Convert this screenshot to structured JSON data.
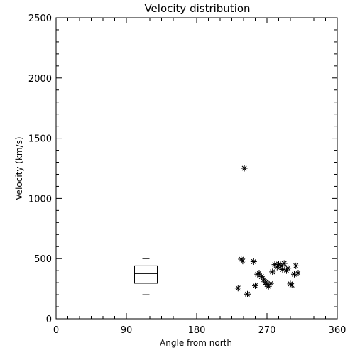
{
  "chart_data": {
    "type": "scatter",
    "title": "Velocity distribution",
    "xlabel": "Angle from north",
    "ylabel": "Velocity (km/s)",
    "xlim": [
      0,
      360
    ],
    "ylim": [
      0,
      2500
    ],
    "xticks": [
      0,
      90,
      180,
      270,
      360
    ],
    "yticks": [
      0,
      500,
      1000,
      1500,
      2000,
      2500
    ],
    "grid": false,
    "marker": "asterisk",
    "points": [
      {
        "x": 241,
        "y": 1250
      },
      {
        "x": 237,
        "y": 495
      },
      {
        "x": 239,
        "y": 480
      },
      {
        "x": 253,
        "y": 475
      },
      {
        "x": 233,
        "y": 255
      },
      {
        "x": 245,
        "y": 205
      },
      {
        "x": 255,
        "y": 275
      },
      {
        "x": 258,
        "y": 370
      },
      {
        "x": 260,
        "y": 380
      },
      {
        "x": 263,
        "y": 350
      },
      {
        "x": 266,
        "y": 325
      },
      {
        "x": 268,
        "y": 300
      },
      {
        "x": 270,
        "y": 285
      },
      {
        "x": 272,
        "y": 270
      },
      {
        "x": 275,
        "y": 295
      },
      {
        "x": 277,
        "y": 390
      },
      {
        "x": 280,
        "y": 450
      },
      {
        "x": 283,
        "y": 430
      },
      {
        "x": 285,
        "y": 455
      },
      {
        "x": 288,
        "y": 440
      },
      {
        "x": 290,
        "y": 410
      },
      {
        "x": 292,
        "y": 460
      },
      {
        "x": 295,
        "y": 400
      },
      {
        "x": 297,
        "y": 420
      },
      {
        "x": 300,
        "y": 290
      },
      {
        "x": 302,
        "y": 280
      },
      {
        "x": 305,
        "y": 370
      },
      {
        "x": 307,
        "y": 440
      },
      {
        "x": 310,
        "y": 380
      }
    ],
    "boxplot": {
      "x": 115,
      "min": 200,
      "q1": 295,
      "median": 375,
      "q3": 440,
      "max": 500
    }
  }
}
